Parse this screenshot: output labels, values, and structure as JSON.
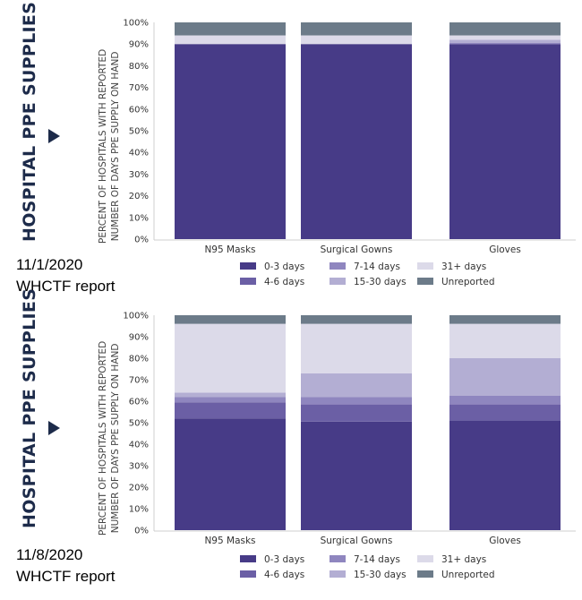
{
  "colors": {
    "0-3 days": "#473b87",
    "4-6 days": "#6b5fa5",
    "7-14 days": "#8f86bf",
    "15-30 days": "#b3aed3",
    "31+ days": "#dcdae9",
    "Unreported": "#6c7b89",
    "title_color": "#1d2b4a"
  },
  "panels": [
    {
      "side_title": "HOSPITAL PPE SUPPLIES",
      "caption_date": "11/1/2020",
      "caption_text": "WHCTF report",
      "chart_data": {
        "type": "bar",
        "stacked": true,
        "title": "",
        "ylabel_lines": [
          "PERCENT OF HOSPITALS WITH REPORTED",
          "NUMBER OF DAYS PPE SUPPLY ON HAND"
        ],
        "categories": [
          "N95 Masks",
          "Surgical Gowns",
          "Gloves"
        ],
        "y_ticks": [
          "0%",
          "10%",
          "20%",
          "30%",
          "40%",
          "50%",
          "60%",
          "70%",
          "80%",
          "90%",
          "100%"
        ],
        "ylim": [
          0,
          100
        ],
        "legend_position": "bottom",
        "series": [
          {
            "name": "0-3 days",
            "values": [
              90,
              90,
              90
            ]
          },
          {
            "name": "4-6 days",
            "values": [
              0,
              0,
              0
            ]
          },
          {
            "name": "7-14 days",
            "values": [
              0,
              0,
              0.5
            ]
          },
          {
            "name": "15-30 days",
            "values": [
              0,
              0,
              1.5
            ]
          },
          {
            "name": "31+ days",
            "values": [
              4,
              4,
              2
            ]
          },
          {
            "name": "Unreported",
            "values": [
              6,
              6,
              6
            ]
          }
        ],
        "legend_order": [
          "0-3 days",
          "7-14 days",
          "31+ days",
          "4-6 days",
          "15-30 days",
          "Unreported"
        ]
      }
    },
    {
      "side_title": "HOSPITAL PPE SUPPLIES",
      "caption_date": "11/8/2020",
      "caption_text": "WHCTF report",
      "chart_data": {
        "type": "bar",
        "stacked": true,
        "title": "",
        "ylabel_lines": [
          "PERCENT OF HOSPITALS WITH REPORTED",
          "NUMBER OF DAYS PPE SUPPLY ON HAND"
        ],
        "categories": [
          "N95 Masks",
          "Surgical Gowns",
          "Gloves"
        ],
        "y_ticks": [
          "0%",
          "10%",
          "20%",
          "30%",
          "40%",
          "50%",
          "60%",
          "70%",
          "80%",
          "90%",
          "100%"
        ],
        "ylim": [
          0,
          100
        ],
        "legend_position": "bottom",
        "series": [
          {
            "name": "0-3 days",
            "values": [
              52,
              50.5,
              51
            ]
          },
          {
            "name": "4-6 days",
            "values": [
              7.5,
              8,
              7.5
            ]
          },
          {
            "name": "7-14 days",
            "values": [
              2.5,
              3.5,
              4
            ]
          },
          {
            "name": "15-30 days",
            "values": [
              2,
              11,
              17.5
            ]
          },
          {
            "name": "31+ days",
            "values": [
              32,
              23,
              16
            ]
          },
          {
            "name": "Unreported",
            "values": [
              4,
              4,
              4
            ]
          }
        ],
        "legend_order": [
          "0-3 days",
          "7-14 days",
          "31+ days",
          "4-6 days",
          "15-30 days",
          "Unreported"
        ]
      }
    }
  ]
}
